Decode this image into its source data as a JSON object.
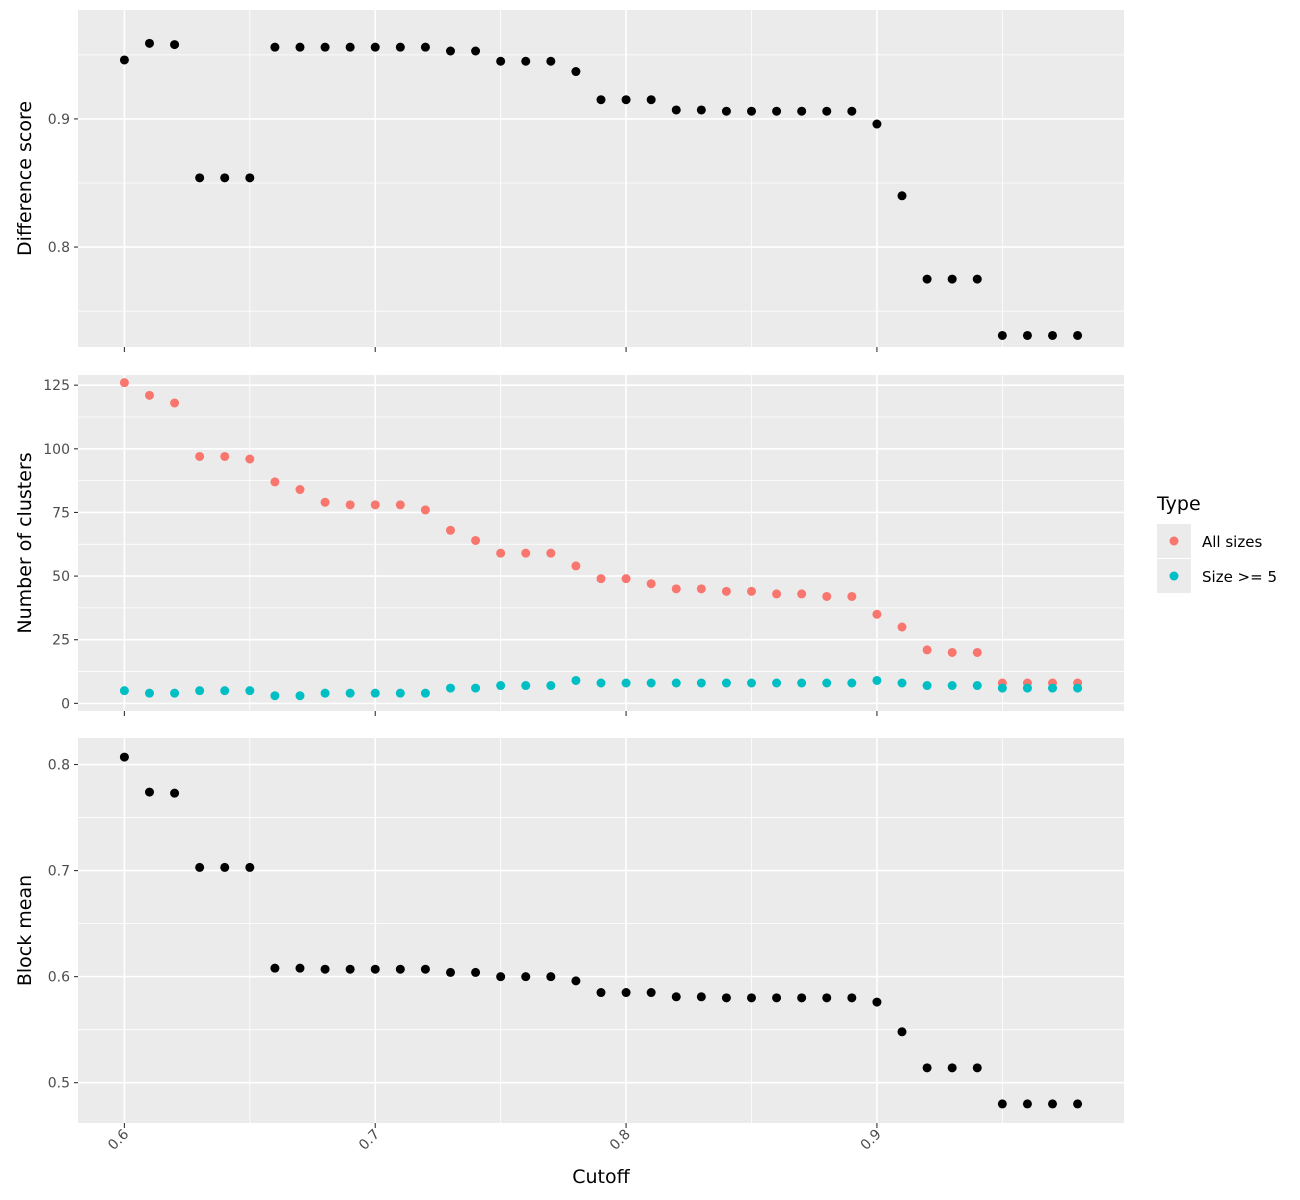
{
  "chart_data": [
    {
      "type": "scatter",
      "ylabel": "Difference score",
      "xlabel": "",
      "ylim": [
        0.722,
        0.985
      ],
      "yticks": [
        0.8,
        0.9
      ],
      "ytick_labels": [
        "0.8",
        "0.9"
      ],
      "series": [
        {
          "color": "#000000",
          "x": [
            0.6,
            0.61,
            0.62,
            0.63,
            0.64,
            0.65,
            0.66,
            0.67,
            0.68,
            0.69,
            0.7,
            0.71,
            0.72,
            0.73,
            0.74,
            0.75,
            0.76,
            0.77,
            0.78,
            0.79,
            0.8,
            0.81,
            0.82,
            0.83,
            0.84,
            0.85,
            0.86,
            0.87,
            0.88,
            0.89,
            0.9,
            0.91,
            0.92,
            0.93,
            0.94,
            0.95,
            0.96,
            0.97,
            0.98
          ],
          "y": [
            0.946,
            0.959,
            0.958,
            0.854,
            0.854,
            0.854,
            0.956,
            0.956,
            0.956,
            0.956,
            0.956,
            0.956,
            0.956,
            0.953,
            0.953,
            0.945,
            0.945,
            0.945,
            0.937,
            0.915,
            0.915,
            0.915,
            0.907,
            0.907,
            0.906,
            0.906,
            0.906,
            0.906,
            0.906,
            0.906,
            0.896,
            0.84,
            0.775,
            0.775,
            0.775,
            0.731,
            0.731,
            0.731,
            0.731
          ]
        }
      ]
    },
    {
      "type": "scatter",
      "ylabel": "Number of clusters",
      "xlabel": "",
      "ylim": [
        -3,
        129
      ],
      "yticks": [
        0,
        25,
        50,
        75,
        100,
        125
      ],
      "ytick_labels": [
        "0",
        "25",
        "50",
        "75",
        "100",
        "125"
      ],
      "legend": {
        "title": "Type",
        "position": "right",
        "entries": [
          {
            "name": "All sizes",
            "color": "#F8766D"
          },
          {
            "name": "Size >= 5",
            "color": "#00BFC4"
          }
        ]
      },
      "series": [
        {
          "name": "All sizes",
          "color": "#F8766D",
          "x": [
            0.6,
            0.61,
            0.62,
            0.63,
            0.64,
            0.65,
            0.66,
            0.67,
            0.68,
            0.69,
            0.7,
            0.71,
            0.72,
            0.73,
            0.74,
            0.75,
            0.76,
            0.77,
            0.78,
            0.79,
            0.8,
            0.81,
            0.82,
            0.83,
            0.84,
            0.85,
            0.86,
            0.87,
            0.88,
            0.89,
            0.9,
            0.91,
            0.92,
            0.93,
            0.94,
            0.95,
            0.96,
            0.97,
            0.98
          ],
          "y": [
            126,
            121,
            118,
            97,
            97,
            96,
            87,
            84,
            79,
            78,
            78,
            78,
            76,
            68,
            64,
            59,
            59,
            59,
            54,
            49,
            49,
            47,
            45,
            45,
            44,
            44,
            43,
            43,
            42,
            42,
            35,
            30,
            21,
            20,
            20,
            8,
            8,
            8,
            8
          ]
        },
        {
          "name": "Size >= 5",
          "color": "#00BFC4",
          "x": [
            0.6,
            0.61,
            0.62,
            0.63,
            0.64,
            0.65,
            0.66,
            0.67,
            0.68,
            0.69,
            0.7,
            0.71,
            0.72,
            0.73,
            0.74,
            0.75,
            0.76,
            0.77,
            0.78,
            0.79,
            0.8,
            0.81,
            0.82,
            0.83,
            0.84,
            0.85,
            0.86,
            0.87,
            0.88,
            0.89,
            0.9,
            0.91,
            0.92,
            0.93,
            0.94,
            0.95,
            0.96,
            0.97,
            0.98
          ],
          "y": [
            5,
            4,
            4,
            5,
            5,
            5,
            3,
            3,
            4,
            4,
            4,
            4,
            4,
            6,
            6,
            7,
            7,
            7,
            9,
            8,
            8,
            8,
            8,
            8,
            8,
            8,
            8,
            8,
            8,
            8,
            9,
            8,
            7,
            7,
            7,
            6,
            6,
            6,
            6
          ]
        }
      ]
    },
    {
      "type": "scatter",
      "ylabel": "Block mean",
      "xlabel": "Cutoff",
      "ylim": [
        0.462,
        0.825
      ],
      "yticks": [
        0.5,
        0.6,
        0.7,
        0.8
      ],
      "ytick_labels": [
        "0.5",
        "0.6",
        "0.7",
        "0.8"
      ],
      "series": [
        {
          "color": "#000000",
          "x": [
            0.6,
            0.61,
            0.62,
            0.63,
            0.64,
            0.65,
            0.66,
            0.67,
            0.68,
            0.69,
            0.7,
            0.71,
            0.72,
            0.73,
            0.74,
            0.75,
            0.76,
            0.77,
            0.78,
            0.79,
            0.8,
            0.81,
            0.82,
            0.83,
            0.84,
            0.85,
            0.86,
            0.87,
            0.88,
            0.89,
            0.9,
            0.91,
            0.92,
            0.93,
            0.94,
            0.95,
            0.96,
            0.97,
            0.98
          ],
          "y": [
            0.807,
            0.774,
            0.773,
            0.703,
            0.703,
            0.703,
            0.608,
            0.608,
            0.607,
            0.607,
            0.607,
            0.607,
            0.607,
            0.604,
            0.604,
            0.6,
            0.6,
            0.6,
            0.596,
            0.585,
            0.585,
            0.585,
            0.581,
            0.581,
            0.58,
            0.58,
            0.58,
            0.58,
            0.58,
            0.58,
            0.576,
            0.548,
            0.514,
            0.514,
            0.514,
            0.48,
            0.48,
            0.48,
            0.48
          ]
        }
      ]
    }
  ],
  "x_axis": {
    "title": "Cutoff",
    "xlim": [
      0.5815,
      0.9985
    ],
    "ticks": [
      0.6,
      0.7,
      0.8,
      0.9
    ],
    "tick_labels": [
      "0.6",
      "0.7",
      "0.8",
      "0.9"
    ]
  }
}
